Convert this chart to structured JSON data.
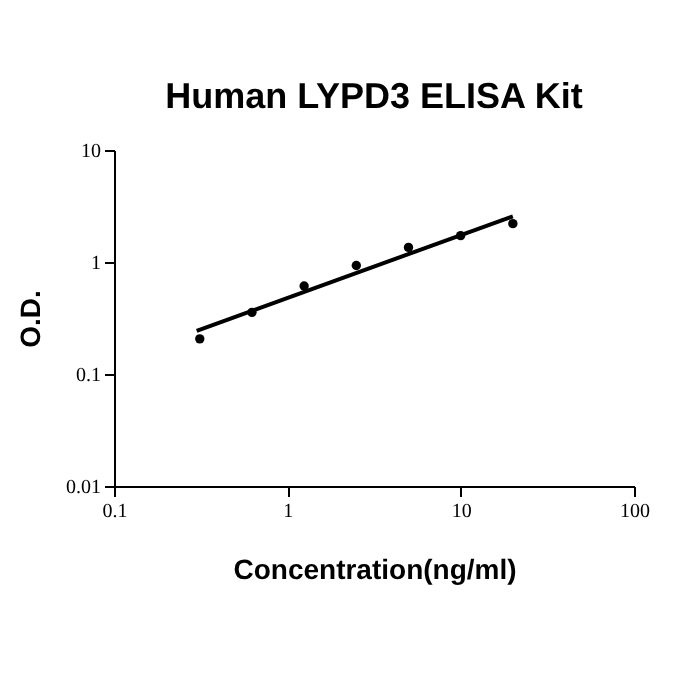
{
  "chart_data": {
    "type": "scatter",
    "title": "Human LYPD3 ELISA Kit",
    "xlabel": "Concentration(ng/ml)",
    "ylabel": "O.D.",
    "log": "xy",
    "marker": "circle",
    "grid": false,
    "xlim": [
      0.1,
      100
    ],
    "xticks": [
      0.1,
      1,
      10,
      100
    ],
    "ylim": [
      0.01,
      10
    ],
    "yticks": [
      0.01,
      0.1,
      1,
      10
    ],
    "series": [
      {
        "color": "#000000",
        "x": [
          0.3125,
          0.625,
          1.25,
          2.5,
          5,
          10,
          20
        ],
        "values": [
          0.206,
          0.355,
          0.61,
          0.93,
          1.35,
          1.72,
          2.2
        ]
      },
      {
        "type": "line",
        "marker": "none",
        "color": "#000000",
        "x": [
          0.3,
          20
        ],
        "values": [
          0.243,
          2.56
        ]
      }
    ]
  }
}
